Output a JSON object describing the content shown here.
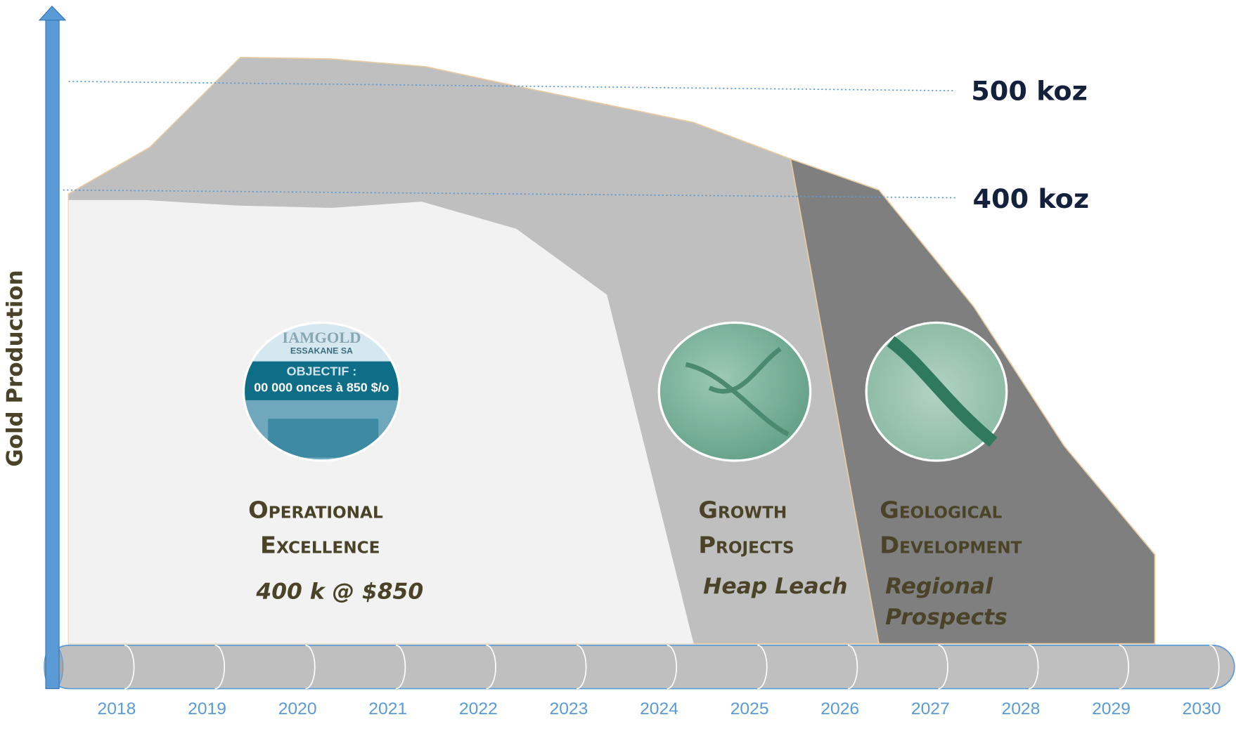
{
  "y_axis_label": "Gold Production",
  "levels": [
    "500 koz",
    "400 koz"
  ],
  "years": [
    "2018",
    "2019",
    "2020",
    "2021",
    "2022",
    "2023",
    "2024",
    "2025",
    "2026",
    "2027",
    "2028",
    "2029",
    "2030"
  ],
  "sections": [
    {
      "title": [
        "Operational",
        "Excellence"
      ],
      "subtitle": [
        "400 k @ $850"
      ]
    },
    {
      "title": [
        "Growth",
        "Projects"
      ],
      "subtitle": [
        "Heap Leach"
      ]
    },
    {
      "title": [
        "Geological",
        "Development"
      ],
      "subtitle": [
        "Regional",
        "Prospects"
      ]
    }
  ],
  "photo_text": [
    "IAMGOLD",
    "ESSAKANE SA",
    "OBJECTIF :",
    "00 000 onces à 850 $/o"
  ]
}
